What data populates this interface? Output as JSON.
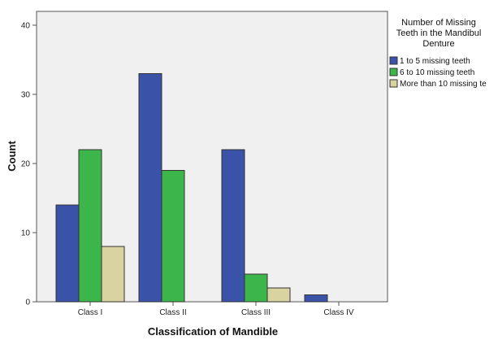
{
  "chart_data": {
    "type": "bar",
    "categories": [
      "Class I",
      "Class II",
      "Class III",
      "Class IV"
    ],
    "series": [
      {
        "name": "1 to 5 missing teeth",
        "values": [
          14,
          33,
          22,
          1
        ],
        "color": "#3a52a8"
      },
      {
        "name": "6 to 10 missing teeth",
        "values": [
          22,
          19,
          4,
          0
        ],
        "color": "#3cb54a"
      },
      {
        "name": "More than 10 missing te",
        "values": [
          8,
          0,
          2,
          0
        ],
        "color": "#d8d3a1"
      }
    ],
    "xlabel": "Classification of Mandible",
    "ylabel": "Count",
    "ylim": [
      0,
      40
    ],
    "yticks": [
      0,
      10,
      20,
      30,
      40
    ],
    "grid": false,
    "legend": {
      "title_lines": [
        "Number of Missing",
        "Teeth in the Mandibul",
        "Denture"
      ],
      "placement": "right"
    },
    "plot_background": "#f0f0f0"
  }
}
